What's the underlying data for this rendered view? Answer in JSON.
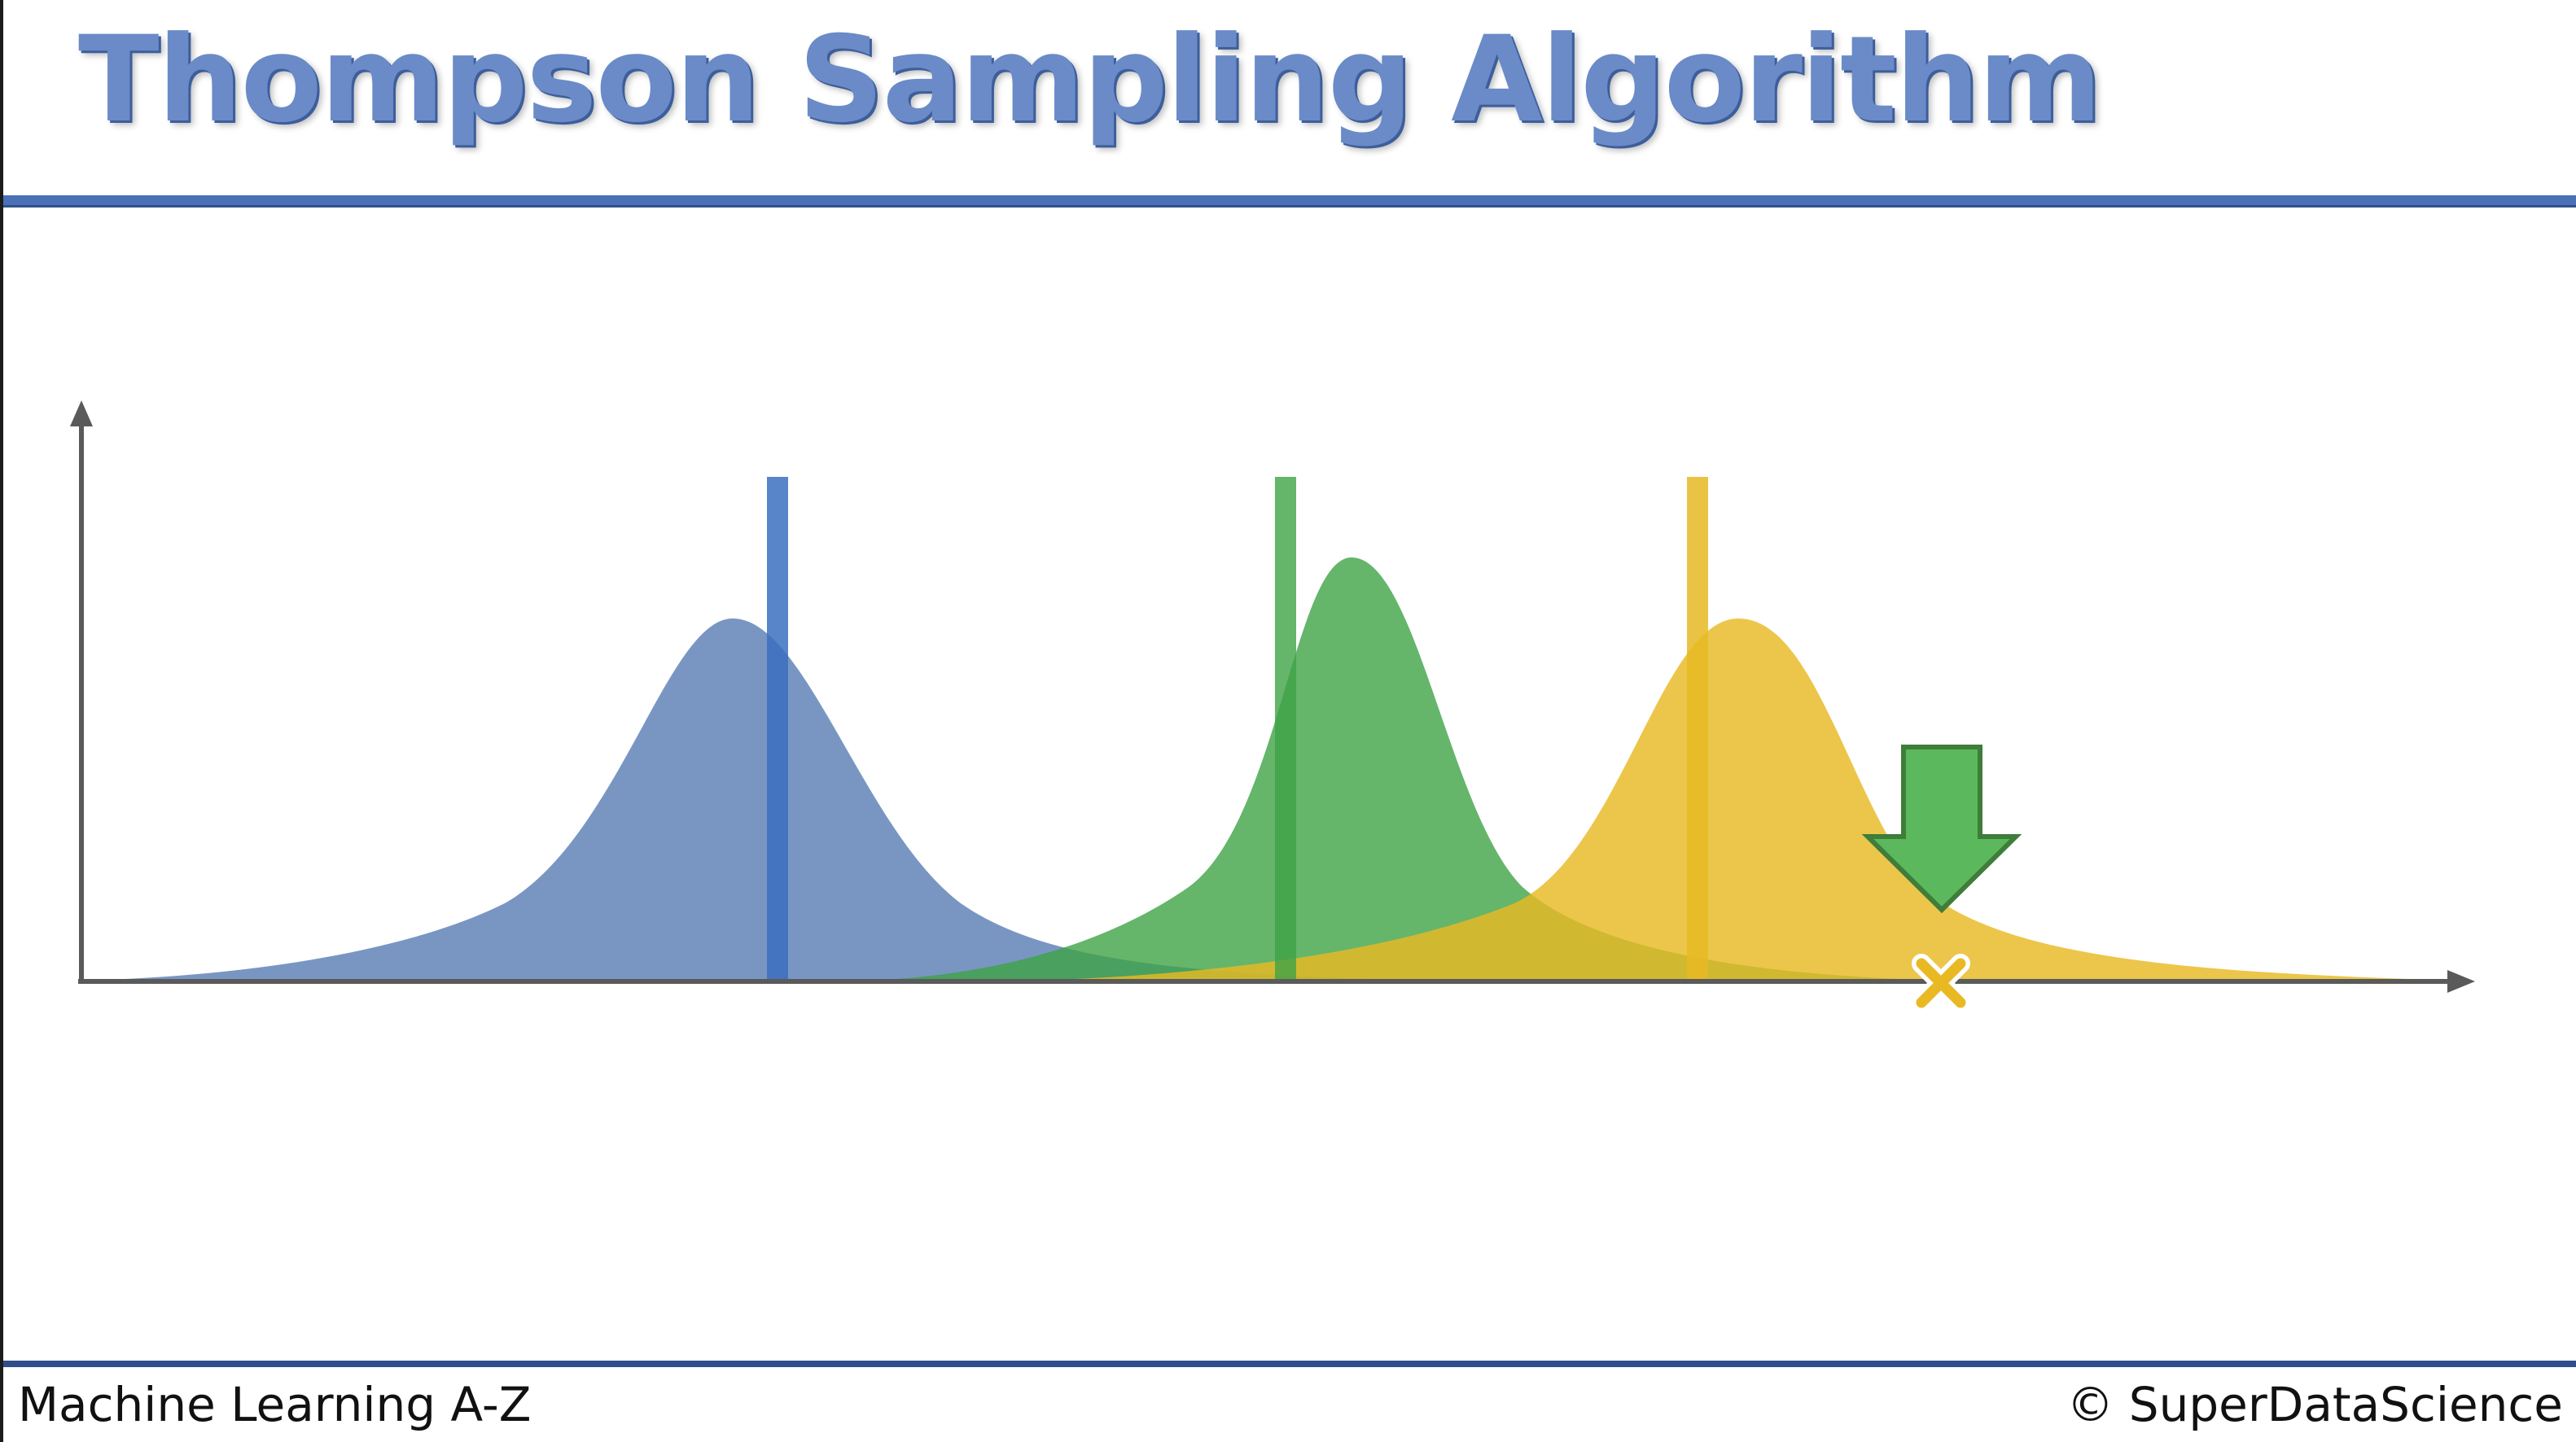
{
  "slide": {
    "title": "Thompson Sampling Algorithm",
    "footer_left": "Machine Learning A-Z",
    "footer_right": "© SuperDataScience"
  },
  "colors": {
    "title_blue": "#6a8bc7",
    "rule_blue": "#4a70b8",
    "dist_blue": "#5b7fb6",
    "dist_green": "#3ea246",
    "dist_yellow": "#e8b923",
    "axis_gray": "#5a5a5a",
    "arrow_green": "#5cb85c"
  },
  "diagram": {
    "distributions": [
      {
        "name_icon": "blue-distribution-curve",
        "color": "blue"
      },
      {
        "name_icon": "green-distribution-curve",
        "color": "green"
      },
      {
        "name_icon": "yellow-distribution-curve",
        "color": "yellow"
      }
    ],
    "icons": {
      "selection_arrow": "down-arrow-icon",
      "sample_marker": "cross-marker-icon"
    }
  }
}
